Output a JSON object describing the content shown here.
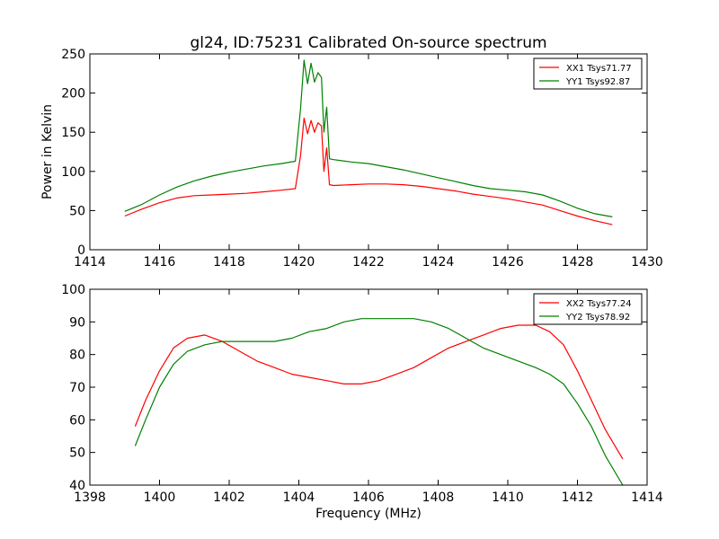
{
  "figure": {
    "title": "gl24, ID:75231 Calibrated On-source spectrum"
  },
  "chart_data": [
    {
      "type": "line",
      "title": "gl24, ID:75231 Calibrated On-source spectrum",
      "xlabel": "",
      "ylabel": "Power in Kelvin",
      "xlim": [
        1414,
        1430
      ],
      "ylim": [
        0,
        250
      ],
      "xticks": [
        1414,
        1416,
        1418,
        1420,
        1422,
        1424,
        1426,
        1428,
        1430
      ],
      "yticks": [
        0,
        50,
        100,
        150,
        200,
        250
      ],
      "grid": false,
      "legend_position": "top-right",
      "series": [
        {
          "name": "XX1 Tsys71.77",
          "color": "#ff0000",
          "x": [
            1415.0,
            1415.5,
            1416.0,
            1416.5,
            1417.0,
            1417.5,
            1418.0,
            1418.5,
            1419.0,
            1419.5,
            1419.9,
            1420.05,
            1420.15,
            1420.25,
            1420.35,
            1420.45,
            1420.55,
            1420.65,
            1420.72,
            1420.8,
            1420.88,
            1421.0,
            1421.5,
            1422.0,
            1422.5,
            1423.0,
            1423.5,
            1424.0,
            1424.5,
            1425.0,
            1425.5,
            1426.0,
            1426.5,
            1427.0,
            1427.5,
            1428.0,
            1428.5,
            1429.0
          ],
          "y": [
            43,
            52,
            60,
            66,
            69,
            70,
            71,
            72,
            74,
            76,
            78,
            120,
            168,
            148,
            165,
            150,
            162,
            158,
            100,
            130,
            83,
            82,
            83,
            84,
            84,
            83,
            81,
            78,
            75,
            71,
            68,
            65,
            61,
            57,
            50,
            43,
            37,
            32
          ]
        },
        {
          "name": "YY1 Tsys92.87",
          "color": "#008000",
          "x": [
            1415.0,
            1415.5,
            1416.0,
            1416.5,
            1417.0,
            1417.5,
            1418.0,
            1418.5,
            1419.0,
            1419.5,
            1419.9,
            1420.05,
            1420.15,
            1420.25,
            1420.35,
            1420.45,
            1420.55,
            1420.65,
            1420.72,
            1420.8,
            1420.88,
            1421.0,
            1421.5,
            1422.0,
            1422.5,
            1423.0,
            1423.5,
            1424.0,
            1424.5,
            1425.0,
            1425.5,
            1426.0,
            1426.5,
            1427.0,
            1427.5,
            1428.0,
            1428.5,
            1429.0
          ],
          "y": [
            49,
            58,
            70,
            80,
            88,
            94,
            99,
            103,
            107,
            110,
            113,
            180,
            242,
            212,
            238,
            214,
            226,
            220,
            150,
            182,
            116,
            115,
            112,
            110,
            106,
            102,
            97,
            92,
            87,
            82,
            78,
            76,
            74,
            70,
            62,
            53,
            46,
            42
          ]
        }
      ]
    },
    {
      "type": "line",
      "title": "",
      "xlabel": "Frequency (MHz)",
      "ylabel": "",
      "xlim": [
        1398,
        1414
      ],
      "ylim": [
        40,
        100
      ],
      "xticks": [
        1398,
        1400,
        1402,
        1404,
        1406,
        1408,
        1410,
        1412,
        1414
      ],
      "yticks": [
        40,
        50,
        60,
        70,
        80,
        90,
        100
      ],
      "grid": false,
      "legend_position": "top-right",
      "series": [
        {
          "name": "XX2 Tsys77.24",
          "color": "#ff0000",
          "x": [
            1399.3,
            1399.6,
            1400.0,
            1400.4,
            1400.8,
            1401.3,
            1401.8,
            1402.3,
            1402.8,
            1403.3,
            1403.8,
            1404.3,
            1404.8,
            1405.3,
            1405.8,
            1406.3,
            1406.8,
            1407.3,
            1407.8,
            1408.3,
            1408.8,
            1409.3,
            1409.8,
            1410.3,
            1410.8,
            1411.2,
            1411.6,
            1412.0,
            1412.4,
            1412.8,
            1413.3
          ],
          "y": [
            58,
            66,
            75,
            82,
            85,
            86,
            84,
            81,
            78,
            76,
            74,
            73,
            72,
            71,
            71,
            72,
            74,
            76,
            79,
            82,
            84,
            86,
            88,
            89,
            89,
            87,
            83,
            75,
            66,
            57,
            48
          ]
        },
        {
          "name": "YY2 Tsys78.92",
          "color": "#008000",
          "x": [
            1399.3,
            1399.6,
            1400.0,
            1400.4,
            1400.8,
            1401.3,
            1401.8,
            1402.3,
            1402.8,
            1403.3,
            1403.8,
            1404.3,
            1404.8,
            1405.3,
            1405.8,
            1406.3,
            1406.8,
            1407.3,
            1407.8,
            1408.3,
            1408.8,
            1409.3,
            1409.8,
            1410.3,
            1410.8,
            1411.2,
            1411.6,
            1412.0,
            1412.4,
            1412.8,
            1413.3
          ],
          "y": [
            52,
            60,
            70,
            77,
            81,
            83,
            84,
            84,
            84,
            84,
            85,
            87,
            88,
            90,
            91,
            91,
            91,
            91,
            90,
            88,
            85,
            82,
            80,
            78,
            76,
            74,
            71,
            65,
            58,
            49,
            40
          ]
        }
      ]
    }
  ]
}
